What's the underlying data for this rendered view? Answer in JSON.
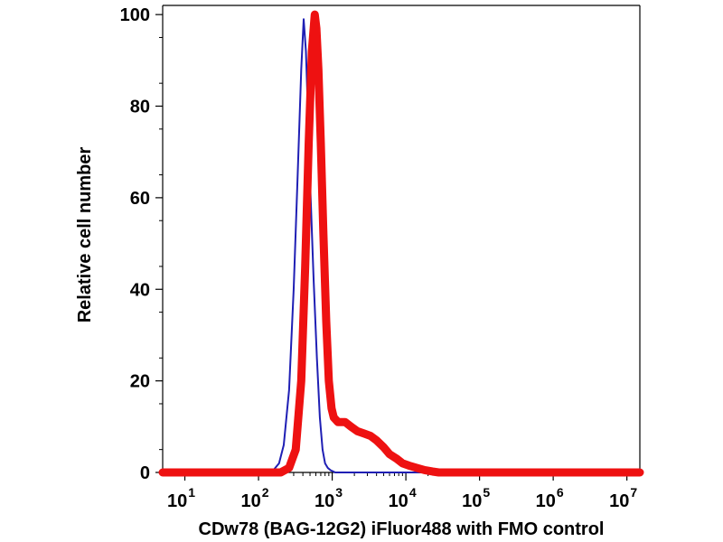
{
  "chart_data": {
    "type": "line",
    "xscale": "log",
    "xlim": [
      5,
      15000000
    ],
    "ylim": [
      0,
      102
    ],
    "xlabel": "CDw78 (BAG-12G2) iFluor488 with FMO control",
    "ylabel": "Relative cell number",
    "yticks": [
      "0",
      "20",
      "40",
      "60",
      "80",
      "100"
    ],
    "xticks": [
      {
        "base": "10",
        "exp": "1"
      },
      {
        "base": "10",
        "exp": "2"
      },
      {
        "base": "10",
        "exp": "3"
      },
      {
        "base": "10",
        "exp": "4"
      },
      {
        "base": "10",
        "exp": "5"
      },
      {
        "base": "10",
        "exp": "6"
      },
      {
        "base": "10",
        "exp": "7"
      }
    ],
    "grid": false,
    "series": [
      {
        "color": "#1f1fb4",
        "x": [
          5,
          150,
          190,
          220,
          260,
          300,
          340,
          380,
          410,
          440,
          470,
          510,
          560,
          620,
          680,
          740,
          800,
          870,
          950,
          1100,
          1500,
          10000,
          100000,
          1000000,
          15000000
        ],
        "y": [
          0,
          0,
          2,
          6,
          18,
          40,
          65,
          88,
          99,
          92,
          78,
          60,
          42,
          25,
          12,
          5,
          2,
          1,
          0.5,
          0,
          0,
          0,
          0,
          0,
          0
        ]
      },
      {
        "color": "#ee1111",
        "x": [
          5,
          200,
          260,
          320,
          380,
          430,
          480,
          530,
          580,
          610,
          650,
          700,
          760,
          830,
          900,
          980,
          1050,
          1200,
          1500,
          1800,
          2200,
          2700,
          3300,
          4000,
          5000,
          6000,
          7500,
          9000,
          11000,
          14000,
          18000,
          23000,
          28000,
          35000,
          100000,
          1000000,
          15000000
        ],
        "y": [
          0,
          0,
          1,
          5,
          20,
          45,
          72,
          92,
          100,
          97,
          88,
          72,
          52,
          33,
          20,
          14,
          12,
          11,
          11,
          10,
          9,
          8.5,
          8,
          7,
          5.5,
          4,
          3,
          2,
          1.5,
          1,
          0.5,
          0.2,
          0,
          0,
          0,
          0,
          0
        ]
      }
    ]
  }
}
